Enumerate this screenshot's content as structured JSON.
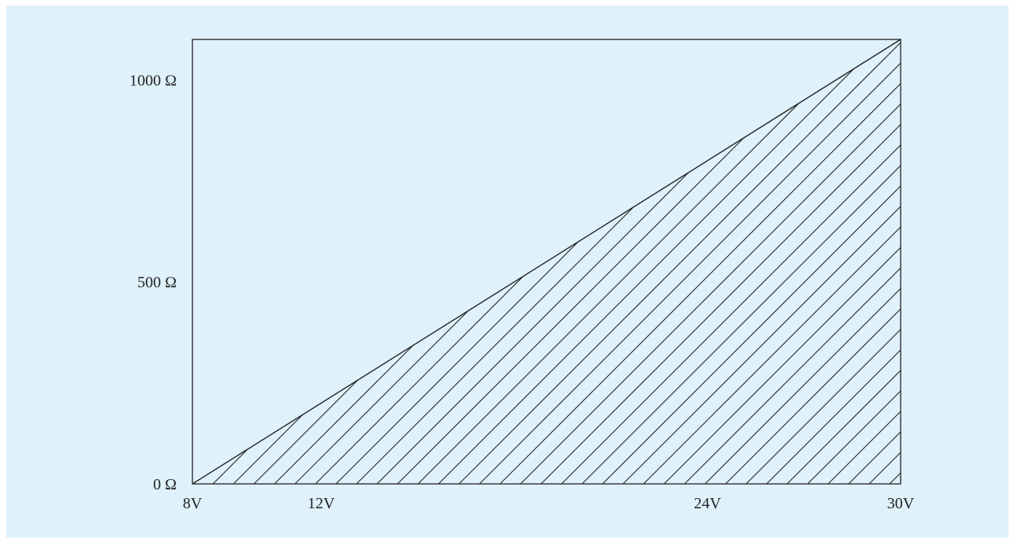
{
  "chart_data": {
    "type": "area",
    "title": "",
    "xlabel": "",
    "ylabel": "",
    "x_ticks": [
      {
        "value": 8,
        "label": "8V"
      },
      {
        "value": 12,
        "label": "12V"
      },
      {
        "value": 24,
        "label": "24V"
      },
      {
        "value": 30,
        "label": "30V"
      }
    ],
    "y_ticks": [
      {
        "value": 0,
        "label": "0 Ω"
      },
      {
        "value": 500,
        "label": "500 Ω"
      },
      {
        "value": 1000,
        "label": "1000 Ω"
      }
    ],
    "xlim": [
      8,
      30
    ],
    "ylim": [
      0,
      1100
    ],
    "boundary_line": [
      {
        "x": 8,
        "y": 0
      },
      {
        "x": 30,
        "y": 1100
      }
    ],
    "shaded_region": "below-line",
    "fill_pattern": "diagonal-hatch",
    "grid": false,
    "colors": {
      "background": "#dff1fb",
      "stroke": "#222222"
    }
  }
}
